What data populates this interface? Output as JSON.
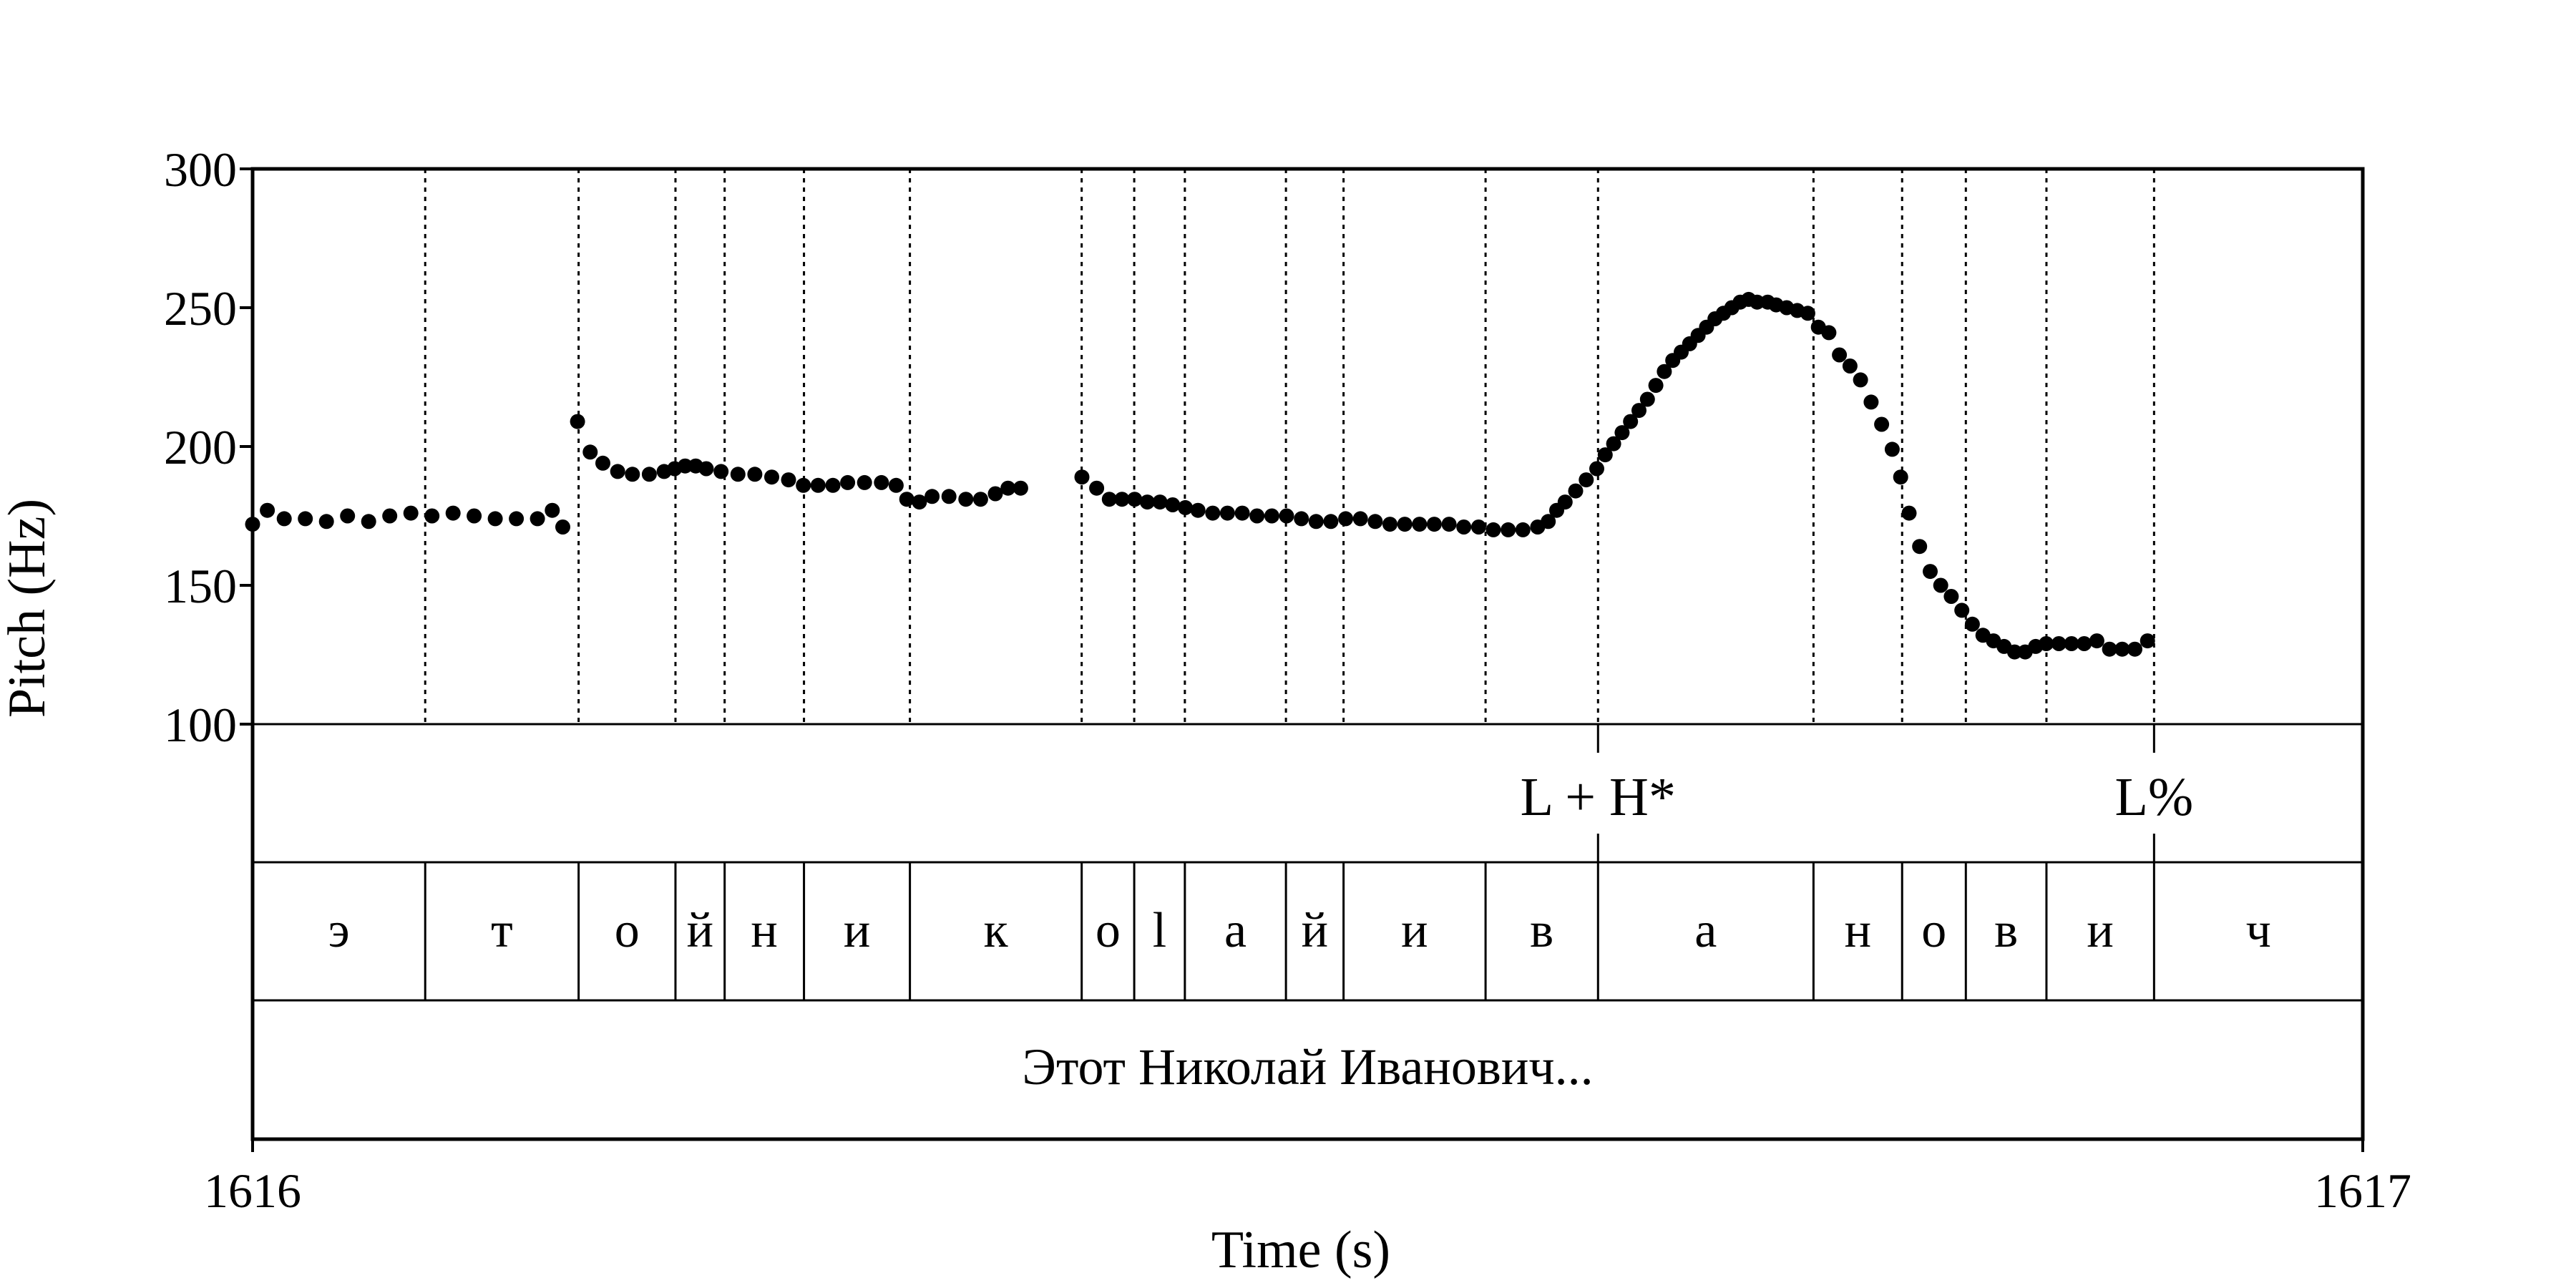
{
  "chart_data": {
    "type": "scatter",
    "title": "",
    "xlabel": "Time (s)",
    "ylabel": "Pitch (Hz)",
    "xlim": [
      1616,
      1617
    ],
    "ylim": [
      100,
      300
    ],
    "x_ticks": [
      "1616",
      "1617"
    ],
    "y_ticks": [
      {
        "value": 300,
        "label": "300"
      },
      {
        "value": 250,
        "label": "250"
      },
      {
        "value": 200,
        "label": "200"
      },
      {
        "value": 150,
        "label": "150"
      },
      {
        "value": 100,
        "label": "100"
      }
    ],
    "boundaries": [
      1616.0818,
      1616.1545,
      1616.2004,
      1616.2237,
      1616.2613,
      1616.3115,
      1616.3929,
      1616.4178,
      1616.4418,
      1616.4897,
      1616.517,
      1616.5843,
      1616.6376,
      1616.7397,
      1616.7817,
      1616.8119,
      1616.8501,
      1616.9011
    ],
    "tones": [
      {
        "label": "L + H*",
        "time": 1616.6376
      },
      {
        "label": "L%",
        "time": 1616.9011
      }
    ],
    "segments": [
      {
        "label": "э",
        "start": 1616.0,
        "end": 1616.0818
      },
      {
        "label": "т",
        "start": 1616.0818,
        "end": 1616.1545
      },
      {
        "label": "о",
        "start": 1616.1545,
        "end": 1616.2004
      },
      {
        "label": "й",
        "start": 1616.2004,
        "end": 1616.2237
      },
      {
        "label": "н",
        "start": 1616.2237,
        "end": 1616.2613
      },
      {
        "label": "и",
        "start": 1616.2613,
        "end": 1616.3115
      },
      {
        "label": "к",
        "start": 1616.3115,
        "end": 1616.3929
      },
      {
        "label": "о",
        "start": 1616.3929,
        "end": 1616.4178
      },
      {
        "label": "l",
        "start": 1616.4178,
        "end": 1616.4418
      },
      {
        "label": "а",
        "start": 1616.4418,
        "end": 1616.4897
      },
      {
        "label": "й",
        "start": 1616.4897,
        "end": 1616.517
      },
      {
        "label": "и",
        "start": 1616.517,
        "end": 1616.5843
      },
      {
        "label": "в",
        "start": 1616.5843,
        "end": 1616.6376
      },
      {
        "label": "а",
        "start": 1616.6376,
        "end": 1616.7397
      },
      {
        "label": "н",
        "start": 1616.7397,
        "end": 1616.7817
      },
      {
        "label": "о",
        "start": 1616.7817,
        "end": 1616.8119
      },
      {
        "label": "в",
        "start": 1616.8119,
        "end": 1616.8501
      },
      {
        "label": "и",
        "start": 1616.8501,
        "end": 1616.9011
      },
      {
        "label": "ч",
        "start": 1616.9011,
        "end": 1617.0
      }
    ],
    "phrase": "Этот Николай Иванович...",
    "pitch_segments": [
      [
        [
          1616.0,
          172
        ],
        [
          1616.007,
          177
        ],
        [
          1616.015,
          174
        ],
        [
          1616.025,
          174
        ],
        [
          1616.035,
          173
        ],
        [
          1616.045,
          175
        ],
        [
          1616.055,
          173
        ],
        [
          1616.065,
          175
        ],
        [
          1616.075,
          176
        ],
        [
          1616.085,
          175
        ],
        [
          1616.095,
          176
        ],
        [
          1616.105,
          175
        ],
        [
          1616.115,
          174
        ],
        [
          1616.125,
          174
        ],
        [
          1616.135,
          174
        ],
        [
          1616.142,
          177
        ],
        [
          1616.147,
          171
        ]
      ],
      [
        [
          1616.154,
          209
        ],
        [
          1616.16,
          198
        ],
        [
          1616.166,
          194
        ],
        [
          1616.173,
          191
        ],
        [
          1616.18,
          190
        ],
        [
          1616.188,
          190
        ],
        [
          1616.195,
          191
        ],
        [
          1616.2,
          192
        ],
        [
          1616.205,
          193
        ],
        [
          1616.21,
          193
        ],
        [
          1616.215,
          192
        ],
        [
          1616.222,
          191
        ],
        [
          1616.23,
          190
        ],
        [
          1616.238,
          190
        ],
        [
          1616.246,
          189
        ],
        [
          1616.254,
          188
        ],
        [
          1616.261,
          186
        ],
        [
          1616.268,
          186
        ],
        [
          1616.275,
          186
        ],
        [
          1616.282,
          187
        ],
        [
          1616.29,
          187
        ],
        [
          1616.298,
          187
        ],
        [
          1616.305,
          186
        ],
        [
          1616.31,
          181
        ],
        [
          1616.316,
          180
        ],
        [
          1616.322,
          182
        ],
        [
          1616.33,
          182
        ],
        [
          1616.338,
          181
        ],
        [
          1616.345,
          181
        ],
        [
          1616.352,
          183
        ],
        [
          1616.358,
          185
        ],
        [
          1616.364,
          185
        ]
      ],
      [
        [
          1616.393,
          189
        ],
        [
          1616.4,
          185
        ],
        [
          1616.406,
          181
        ],
        [
          1616.412,
          181
        ],
        [
          1616.418,
          181
        ],
        [
          1616.424,
          180
        ],
        [
          1616.43,
          180
        ],
        [
          1616.436,
          179
        ],
        [
          1616.442,
          178
        ],
        [
          1616.448,
          177
        ],
        [
          1616.455,
          176
        ],
        [
          1616.462,
          176
        ],
        [
          1616.469,
          176
        ],
        [
          1616.476,
          175
        ],
        [
          1616.483,
          175
        ],
        [
          1616.49,
          175
        ],
        [
          1616.497,
          174
        ],
        [
          1616.504,
          173
        ],
        [
          1616.511,
          173
        ],
        [
          1616.518,
          174
        ],
        [
          1616.525,
          174
        ],
        [
          1616.532,
          173
        ],
        [
          1616.539,
          172
        ],
        [
          1616.546,
          172
        ],
        [
          1616.553,
          172
        ],
        [
          1616.56,
          172
        ],
        [
          1616.567,
          172
        ],
        [
          1616.574,
          171
        ],
        [
          1616.581,
          171
        ],
        [
          1616.588,
          170
        ],
        [
          1616.595,
          170
        ],
        [
          1616.602,
          170
        ],
        [
          1616.609,
          171
        ],
        [
          1616.614,
          173
        ],
        [
          1616.618,
          177
        ],
        [
          1616.622,
          180
        ],
        [
          1616.627,
          184
        ],
        [
          1616.632,
          188
        ],
        [
          1616.637,
          192
        ],
        [
          1616.641,
          197
        ],
        [
          1616.645,
          201
        ],
        [
          1616.649,
          205
        ],
        [
          1616.653,
          209
        ],
        [
          1616.657,
          213
        ],
        [
          1616.661,
          217
        ],
        [
          1616.665,
          222
        ],
        [
          1616.669,
          227
        ],
        [
          1616.673,
          231
        ],
        [
          1616.677,
          234
        ],
        [
          1616.681,
          237
        ],
        [
          1616.685,
          240
        ],
        [
          1616.689,
          243
        ],
        [
          1616.693,
          246
        ],
        [
          1616.697,
          248
        ],
        [
          1616.701,
          250
        ],
        [
          1616.705,
          252
        ],
        [
          1616.709,
          253
        ],
        [
          1616.713,
          252
        ],
        [
          1616.718,
          252
        ],
        [
          1616.722,
          251
        ],
        [
          1616.727,
          250
        ],
        [
          1616.732,
          249
        ],
        [
          1616.737,
          248
        ],
        [
          1616.742,
          243
        ],
        [
          1616.747,
          241
        ],
        [
          1616.752,
          233
        ],
        [
          1616.757,
          229
        ],
        [
          1616.762,
          224
        ],
        [
          1616.767,
          216
        ],
        [
          1616.772,
          208
        ],
        [
          1616.777,
          199
        ],
        [
          1616.781,
          189
        ],
        [
          1616.785,
          176
        ],
        [
          1616.79,
          164
        ],
        [
          1616.795,
          155
        ],
        [
          1616.8,
          150
        ],
        [
          1616.805,
          146
        ],
        [
          1616.81,
          141
        ],
        [
          1616.815,
          136
        ],
        [
          1616.82,
          132
        ],
        [
          1616.825,
          130
        ],
        [
          1616.83,
          128
        ],
        [
          1616.835,
          126
        ],
        [
          1616.84,
          126
        ],
        [
          1616.845,
          128
        ],
        [
          1616.85,
          129
        ],
        [
          1616.856,
          129
        ],
        [
          1616.862,
          129
        ],
        [
          1616.868,
          129
        ],
        [
          1616.874,
          130
        ],
        [
          1616.88,
          127
        ],
        [
          1616.886,
          127
        ],
        [
          1616.892,
          127
        ],
        [
          1616.898,
          130
        ]
      ]
    ]
  }
}
